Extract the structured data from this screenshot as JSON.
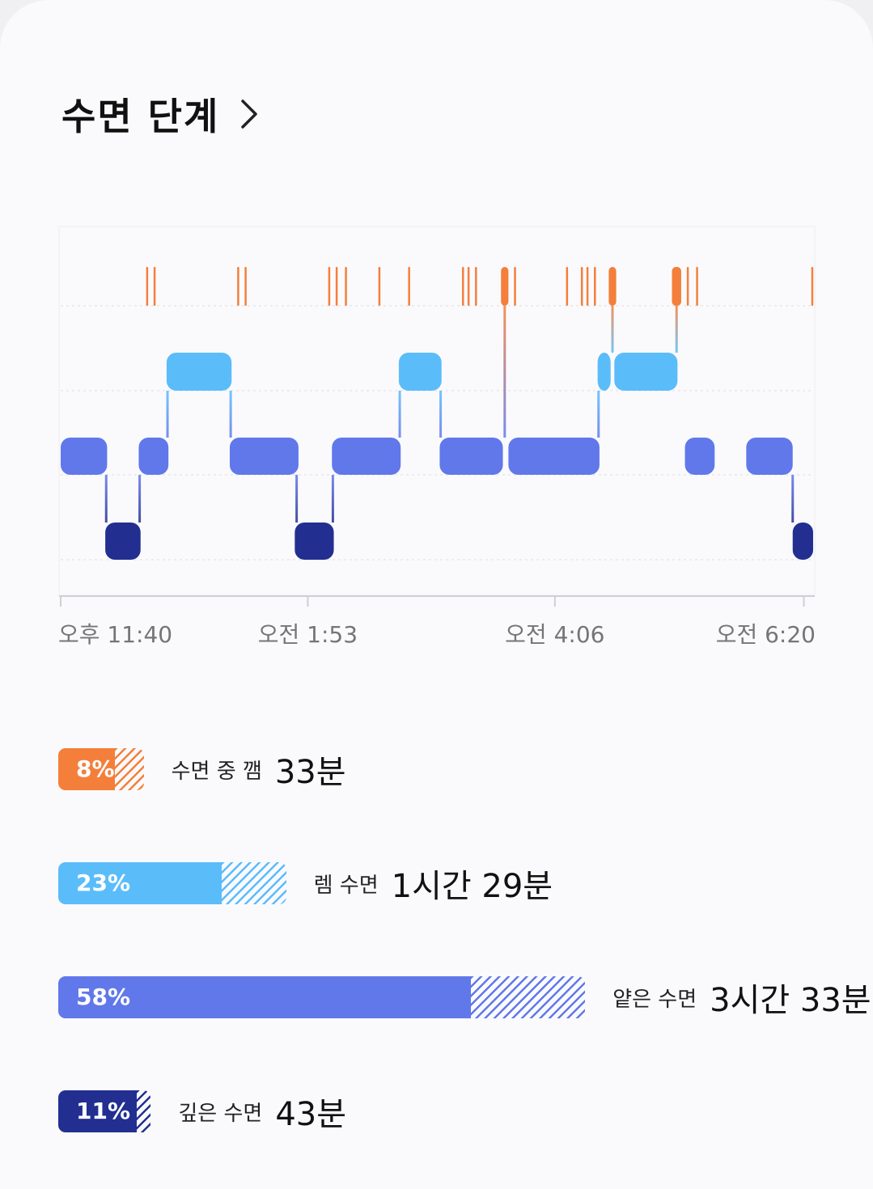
{
  "header": {
    "title": "수면 단계",
    "chevron_icon": "chevron-right-icon"
  },
  "colors": {
    "awake": "#f47f3b",
    "rem": "#5bbcfa",
    "light": "#6178ea",
    "deep": "#222f91",
    "grid": "#dedede",
    "axis": "#cfcfd4",
    "tick_text": "#757575"
  },
  "chart_data": {
    "type": "hypnogram",
    "x_start": "23:40",
    "x_end": "06:25",
    "x_ticks": [
      {
        "time": "23:40",
        "label": "오후 11:40"
      },
      {
        "time": "01:53",
        "label": "오전 1:53"
      },
      {
        "time": "04:06",
        "label": "오전 4:06"
      },
      {
        "time": "06:20",
        "label": "오전 6:20"
      }
    ],
    "stages_order_top_to_bottom": [
      "awake",
      "rem",
      "light",
      "deep"
    ],
    "segments": [
      {
        "stage": "light",
        "start": "23:40",
        "end": "00:05"
      },
      {
        "stage": "deep",
        "start": "00:04",
        "end": "00:23"
      },
      {
        "stage": "light",
        "start": "00:22",
        "end": "00:38"
      },
      {
        "stage": "rem",
        "start": "00:37",
        "end": "01:12"
      },
      {
        "stage": "light",
        "start": "01:11",
        "end": "01:48"
      },
      {
        "stage": "deep",
        "start": "01:46",
        "end": "02:07"
      },
      {
        "stage": "light",
        "start": "02:06",
        "end": "02:43"
      },
      {
        "stage": "rem",
        "start": "02:42",
        "end": "03:05"
      },
      {
        "stage": "light",
        "start": "03:04",
        "end": "03:38"
      },
      {
        "stage": "light",
        "start": "03:41",
        "end": "04:30"
      },
      {
        "stage": "rem",
        "start": "04:29",
        "end": "04:36"
      },
      {
        "stage": "rem",
        "start": "04:38",
        "end": "05:12"
      },
      {
        "stage": "light",
        "start": "05:16",
        "end": "05:32"
      },
      {
        "stage": "light",
        "start": "05:49",
        "end": "06:14"
      },
      {
        "stage": "deep",
        "start": "06:14",
        "end": "06:25"
      }
    ],
    "awake_events": [
      {
        "start": "00:26",
        "end": "00:27"
      },
      {
        "start": "00:30",
        "end": "00:31"
      },
      {
        "start": "01:15",
        "end": "01:16"
      },
      {
        "start": "01:19",
        "end": "01:20"
      },
      {
        "start": "02:04",
        "end": "02:05"
      },
      {
        "start": "02:08",
        "end": "02:09"
      },
      {
        "start": "02:13",
        "end": "02:14"
      },
      {
        "start": "02:31",
        "end": "02:32"
      },
      {
        "start": "02:47",
        "end": "02:48"
      },
      {
        "start": "03:16",
        "end": "03:17"
      },
      {
        "start": "03:19",
        "end": "03:20"
      },
      {
        "start": "03:23",
        "end": "03:24"
      },
      {
        "start": "03:37",
        "end": "03:41"
      },
      {
        "start": "03:44",
        "end": "03:45"
      },
      {
        "start": "04:12",
        "end": "04:13"
      },
      {
        "start": "04:20",
        "end": "04:21"
      },
      {
        "start": "04:23",
        "end": "04:24"
      },
      {
        "start": "04:27",
        "end": "04:28"
      },
      {
        "start": "04:35",
        "end": "04:39"
      },
      {
        "start": "05:09",
        "end": "05:14"
      },
      {
        "start": "05:17",
        "end": "05:18"
      },
      {
        "start": "05:22",
        "end": "05:23"
      },
      {
        "start": "06:24",
        "end": "06:25"
      }
    ]
  },
  "legend": [
    {
      "stage": "awake",
      "percent_label": "8%",
      "percent": 8,
      "hatch_percent": 4,
      "label": "수면 중 깸",
      "duration": "33분"
    },
    {
      "stage": "rem",
      "percent_label": "23%",
      "percent": 23,
      "hatch_percent": 9,
      "label": "렘 수면",
      "duration": "1시간 29분"
    },
    {
      "stage": "light",
      "percent_label": "58%",
      "percent": 58,
      "hatch_percent": 16,
      "label": "얕은 수면",
      "duration": "3시간 33분"
    },
    {
      "stage": "deep",
      "percent_label": "11%",
      "percent": 11,
      "hatch_percent": 2,
      "label": "깊은 수면",
      "duration": "43분"
    }
  ]
}
